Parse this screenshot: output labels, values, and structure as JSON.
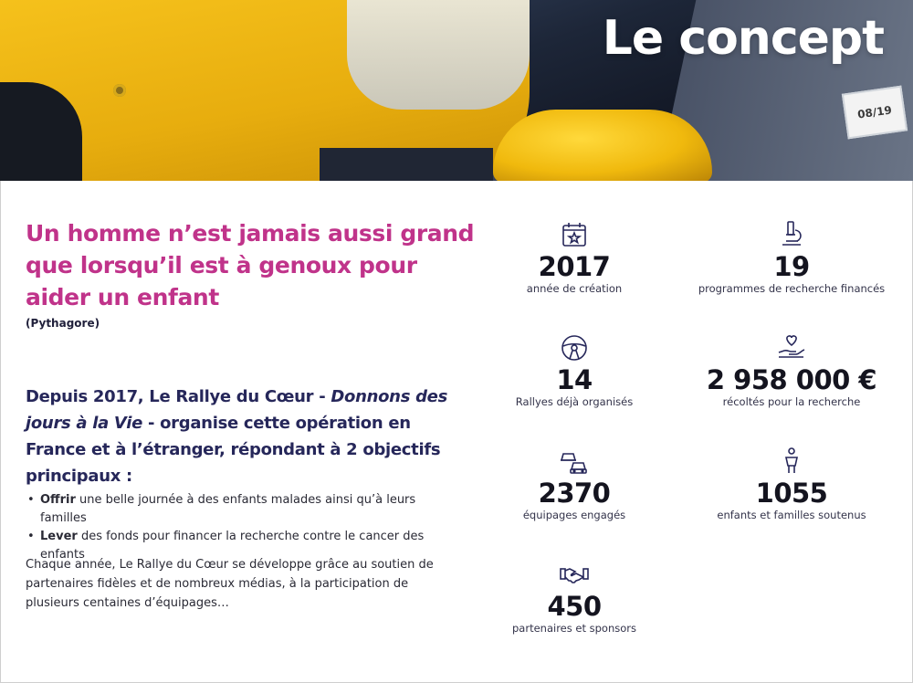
{
  "hero": {
    "title": "Le concept",
    "plate_text": "08/19"
  },
  "quote": {
    "text": "Un homme n’est jamais aussi grand que lorsqu’il est à genoux pour aider un enfant",
    "author": "(Pythagore)"
  },
  "intro": {
    "part1": "Depuis 2017, Le Rallye du Cœur - ",
    "italic": "Donnons des jours à la Vie",
    "part2": " - organise cette opération en France et à l’étranger, répondant à 2 objectifs principaux :"
  },
  "objectives": [
    {
      "bold": "Offrir",
      "text": " une belle journée à des enfants malades ainsi qu’à leurs familles"
    },
    {
      "bold": "Lever",
      "text": " des fonds pour financer la recherche contre le cancer des enfants"
    }
  ],
  "paragraph": "Chaque année, Le Rallye du Cœur se développe grâce au soutien de partenaires fidèles et de nombreux médias, à la participation de plusieurs centaines d’équipages…",
  "stats": [
    {
      "icon": "calendar-icon",
      "value": "2017",
      "label": "année de création"
    },
    {
      "icon": "microscope-icon",
      "value": "19",
      "label": "programmes de recherche financés"
    },
    {
      "icon": "steering-wheel-icon",
      "value": "14",
      "label": "Rallyes déjà organisés"
    },
    {
      "icon": "hand-heart-icon",
      "value": "2 958 000 €",
      "label": "récoltés pour la recherche"
    },
    {
      "icon": "cars-icon",
      "value": "2370",
      "label": "équipages engagés"
    },
    {
      "icon": "child-icon",
      "value": "1055",
      "label": "enfants et familles soutenus"
    },
    {
      "icon": "handshake-icon",
      "value": "450",
      "label": "partenaires et sponsors"
    }
  ],
  "colors": {
    "quote": "#c0338a",
    "intro": "#26275a",
    "stat_value": "#14141f"
  }
}
